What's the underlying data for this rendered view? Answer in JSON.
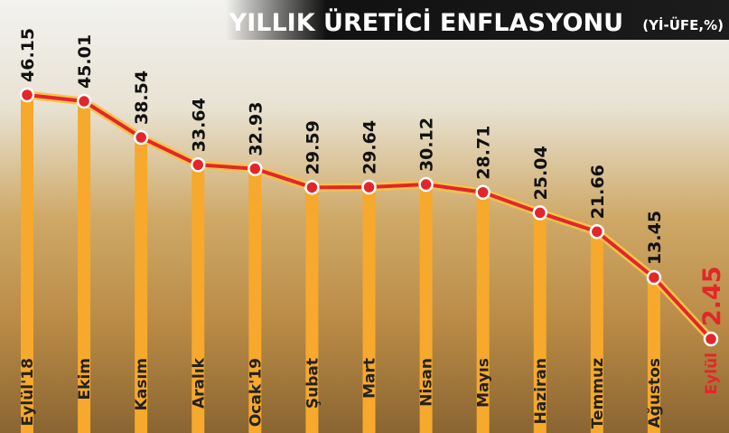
{
  "chart_data": {
    "type": "bar-line",
    "title": "YILLIK ÜRETİCİ ENFLASYONU",
    "subtitle": "(Yİ-ÜFE,%)",
    "categories": [
      "Eylül'18",
      "Ekim",
      "Kasım",
      "Aralık",
      "Ocak'19",
      "Şubat",
      "Mart",
      "Nisan",
      "Mayıs",
      "Haziran",
      "Temmuz",
      "Ağustos",
      "Eylül"
    ],
    "values": [
      46.15,
      45.01,
      38.54,
      33.64,
      32.93,
      29.59,
      29.64,
      30.12,
      28.71,
      25.04,
      21.66,
      13.45,
      2.45
    ],
    "bar_color": "#f6a92c",
    "line_color": "#e3262a",
    "highlight_color": "#e3262a"
  }
}
